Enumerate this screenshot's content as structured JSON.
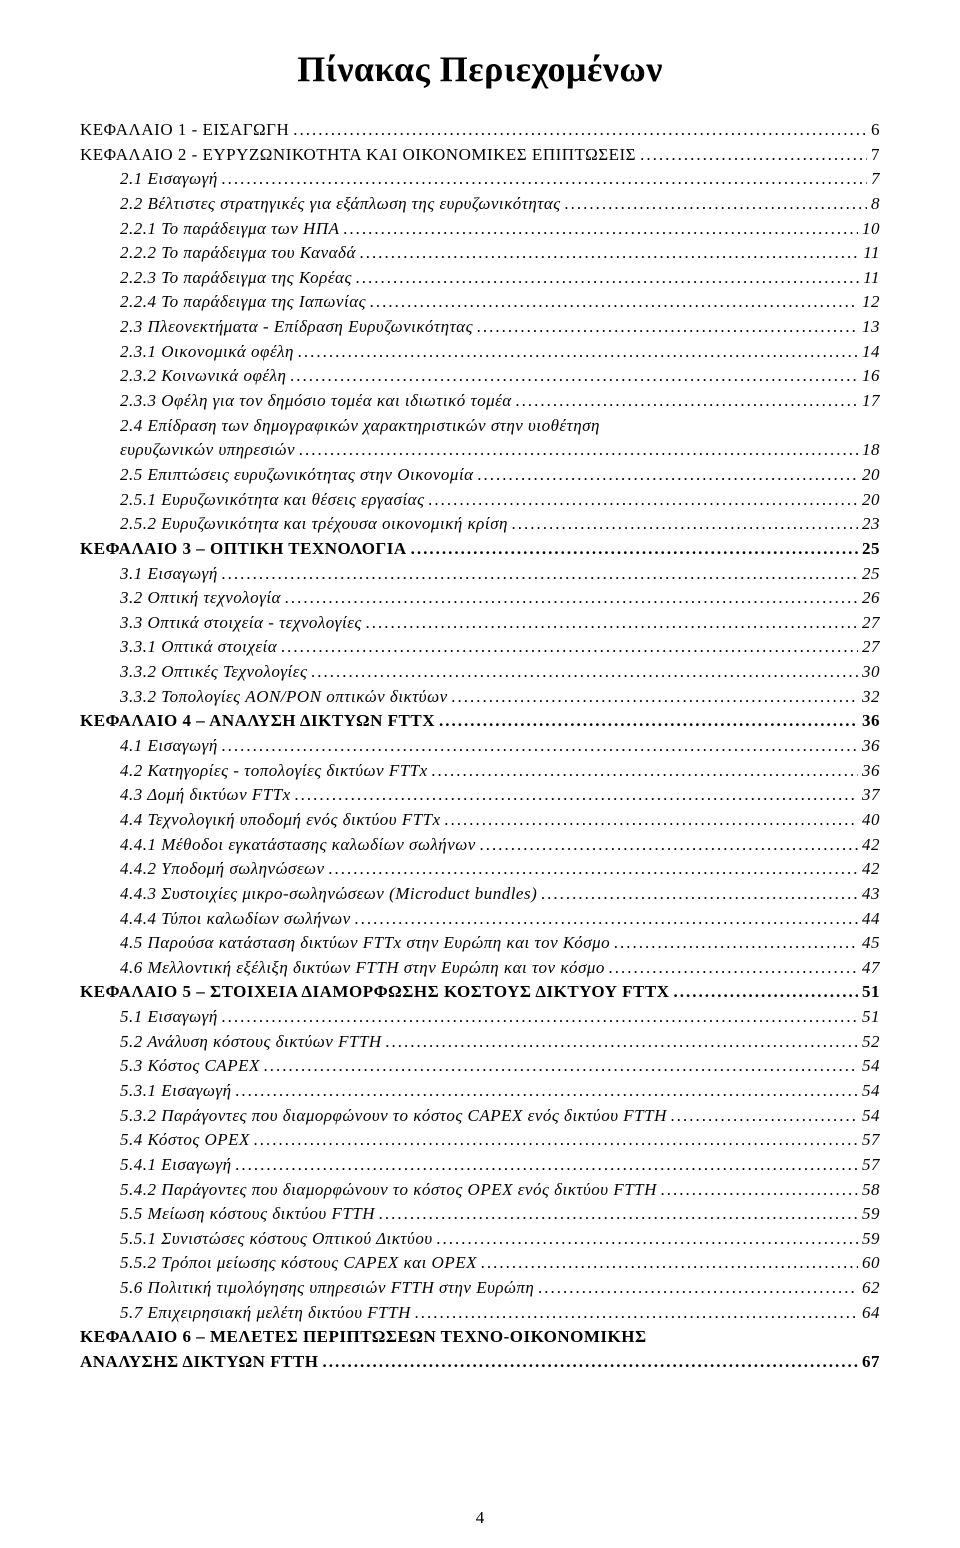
{
  "title": "Πίνακας Περιεχομένων",
  "page_number": "4",
  "leader_char": ".",
  "toc": [
    {
      "level": 0,
      "bold": false,
      "label": "ΚΕΦΑΛΑΙΟ 1 - ΕΙΣΑΓΩΓΗ",
      "page": "6"
    },
    {
      "level": 0,
      "bold": false,
      "label": "ΚΕΦΑΛΑΙΟ 2 - ΕΥΡΥΖΩΝΙΚΟΤΗΤΑ ΚΑΙ ΟΙΚΟΝΟΜΙΚΕΣ ΕΠΙΠΤΩΣΕΙΣ",
      "page": "7"
    },
    {
      "level": 1,
      "bold": false,
      "label": "2.1 Εισαγωγή",
      "page": "7"
    },
    {
      "level": 1,
      "bold": false,
      "label": "2.2 Βέλτιστες στρατηγικές για εξάπλωση της ευρυζωνικότητας",
      "page": "8"
    },
    {
      "level": 1,
      "bold": false,
      "label": "2.2.1 Το παράδειγμα των ΗΠΑ",
      "page": "10"
    },
    {
      "level": 1,
      "bold": false,
      "label": "2.2.2 Το παράδειγμα του Καναδά",
      "page": "11"
    },
    {
      "level": 1,
      "bold": false,
      "label": "2.2.3 Το παράδειγμα της Κορέας",
      "page": "11"
    },
    {
      "level": 1,
      "bold": false,
      "label": "2.2.4 Το παράδειγμα της Ιαπωνίας",
      "page": "12"
    },
    {
      "level": 1,
      "bold": false,
      "label": "2.3 Πλεονεκτήματα - Επίδραση Ευρυζωνικότητας",
      "page": "13"
    },
    {
      "level": 1,
      "bold": false,
      "label": "2.3.1 Οικονομικά οφέλη",
      "page": "14"
    },
    {
      "level": 1,
      "bold": false,
      "label": "2.3.2 Κοινωνικά οφέλη",
      "page": "16"
    },
    {
      "level": 1,
      "bold": false,
      "label": "2.3.3 Οφέλη για τον δημόσιο τομέα και ιδιωτικό τομέα",
      "page": "17"
    },
    {
      "level": 1,
      "bold": false,
      "label": "2.4 Επίδραση των δημογραφικών χαρακτηριστικών στην υιοθέτηση ευρυζωνικών υπηρεσιών",
      "page": "18",
      "wrap": true
    },
    {
      "level": 1,
      "bold": false,
      "label": "2.5 Επιπτώσεις ευρυζωνικότητας στην Οικονομία",
      "page": "20"
    },
    {
      "level": 1,
      "bold": false,
      "label": "2.5.1 Ευρυζωνικότητα και θέσεις εργασίας",
      "page": "20"
    },
    {
      "level": 1,
      "bold": false,
      "label": "2.5.2 Ευρυζωνικότητα και τρέχουσα οικονομική κρίση",
      "page": "23"
    },
    {
      "level": 0,
      "bold": true,
      "label": "ΚΕΦΑΛΑΙΟ 3 – ΟΠΤΙΚΗ ΤΕΧΝΟΛΟΓΙΑ",
      "page": "25"
    },
    {
      "level": 1,
      "bold": false,
      "label": "3.1 Εισαγωγή",
      "page": "25"
    },
    {
      "level": 1,
      "bold": false,
      "label": "3.2 Οπτική τεχνολογία",
      "page": "26"
    },
    {
      "level": 1,
      "bold": false,
      "label": "3.3 Οπτικά στοιχεία - τεχνολογίες",
      "page": "27"
    },
    {
      "level": 1,
      "bold": false,
      "label": "3.3.1 Οπτικά στοιχεία",
      "page": "27"
    },
    {
      "level": 1,
      "bold": false,
      "label": "3.3.2 Οπτικές Τεχνολογίες",
      "page": "30"
    },
    {
      "level": 1,
      "bold": false,
      "label": "3.3.2 Τοπολογίες AON/PON οπτικών δικτύων",
      "page": "32"
    },
    {
      "level": 0,
      "bold": true,
      "label": "ΚΕΦΑΛΑΙΟ 4 – ΑΝΑΛΥΣΗ ΔΙΚΤΥΩΝ FTTX",
      "page": "36"
    },
    {
      "level": 1,
      "bold": false,
      "label": "4.1 Εισαγωγή",
      "page": "36"
    },
    {
      "level": 1,
      "bold": false,
      "label": "4.2 Κατηγορίες - τοπολογίες δικτύων FTTx",
      "page": "36"
    },
    {
      "level": 1,
      "bold": false,
      "label": "4.3 Δομή δικτύων FTTx",
      "page": "37"
    },
    {
      "level": 1,
      "bold": false,
      "label": "4.4 Τεχνολογική υποδομή ενός δικτύου FTTx",
      "page": "40"
    },
    {
      "level": 1,
      "bold": false,
      "label": "4.4.1 Μέθοδοι εγκατάστασης καλωδίων σωλήνων",
      "page": "42"
    },
    {
      "level": 1,
      "bold": false,
      "label": "4.4.2 Υποδομή σωληνώσεων",
      "page": "42"
    },
    {
      "level": 1,
      "bold": false,
      "label": "4.4.3 Συστοιχίες μικρο-σωληνώσεων (Microduct bundles)",
      "page": "43"
    },
    {
      "level": 1,
      "bold": false,
      "label": "4.4.4 Τύποι καλωδίων σωλήνων",
      "page": "44"
    },
    {
      "level": 1,
      "bold": false,
      "label": "4.5 Παρούσα κατάσταση δικτύων FTTx στην Ευρώπη και τον Κόσμο",
      "page": "45"
    },
    {
      "level": 1,
      "bold": false,
      "label": "4.6 Μελλοντική εξέλιξη δικτύων FTTH στην Ευρώπη και τον κόσμο",
      "page": "47"
    },
    {
      "level": 0,
      "bold": true,
      "label": "ΚΕΦΑΛΑΙΟ 5 – ΣΤΟΙΧΕΙΑ ΔΙΑΜΟΡΦΩΣΗΣ ΚΟΣΤΟΥΣ ΔΙΚΤΥΟΥ FTTX",
      "page": "51"
    },
    {
      "level": 1,
      "bold": false,
      "label": "5.1 Εισαγωγή",
      "page": "51"
    },
    {
      "level": 1,
      "bold": false,
      "label": "5.2 Ανάλυση κόστους δικτύων FTTH",
      "page": "52"
    },
    {
      "level": 1,
      "bold": false,
      "label": "5.3 Κόστος CAPEX",
      "page": "54"
    },
    {
      "level": 1,
      "bold": false,
      "label": "5.3.1 Εισαγωγή",
      "page": "54"
    },
    {
      "level": 1,
      "bold": false,
      "label": "5.3.2 Παράγοντες που διαμορφώνουν το κόστος CAPEX ενός δικτύου FTTH",
      "page": "54"
    },
    {
      "level": 1,
      "bold": false,
      "label": "5.4 Κόστος OPEX",
      "page": "57"
    },
    {
      "level": 1,
      "bold": false,
      "label": "5.4.1 Εισαγωγή",
      "page": "57"
    },
    {
      "level": 1,
      "bold": false,
      "label": "5.4.2 Παράγοντες που διαμορφώνουν το κόστος OPEX ενός δικτύου FTTH",
      "page": "58"
    },
    {
      "level": 1,
      "bold": false,
      "label": "5.5 Μείωση κόστους δικτύου FTTH",
      "page": "59"
    },
    {
      "level": 1,
      "bold": false,
      "label": "5.5.1 Συνιστώσες κόστους Οπτικού Δικτύου",
      "page": "59"
    },
    {
      "level": 1,
      "bold": false,
      "label": "5.5.2 Τρόποι μείωσης κόστους CAPEX και OPEX",
      "page": "60"
    },
    {
      "level": 1,
      "bold": false,
      "label": "5.6 Πολιτική τιμολόγησης υπηρεσιών FTTH στην Ευρώπη",
      "page": "62"
    },
    {
      "level": 1,
      "bold": false,
      "label": "5.7 Επιχειρησιακή μελέτη δικτύου FTTH",
      "page": "64"
    },
    {
      "level": 0,
      "bold": true,
      "label": "ΚΕΦΑΛΑΙΟ 6 – ΜΕΛΕΤΕΣ ΠΕΡΙΠΤΩΣΕΩΝ ΤΕΧΝΟ-ΟΙΚΟΝΟΜΙΚΗΣ ΑΝΑΛΥΣΗΣ ΔΙΚΤΥΩΝ FTTH",
      "page": "67",
      "wrap": true
    }
  ]
}
